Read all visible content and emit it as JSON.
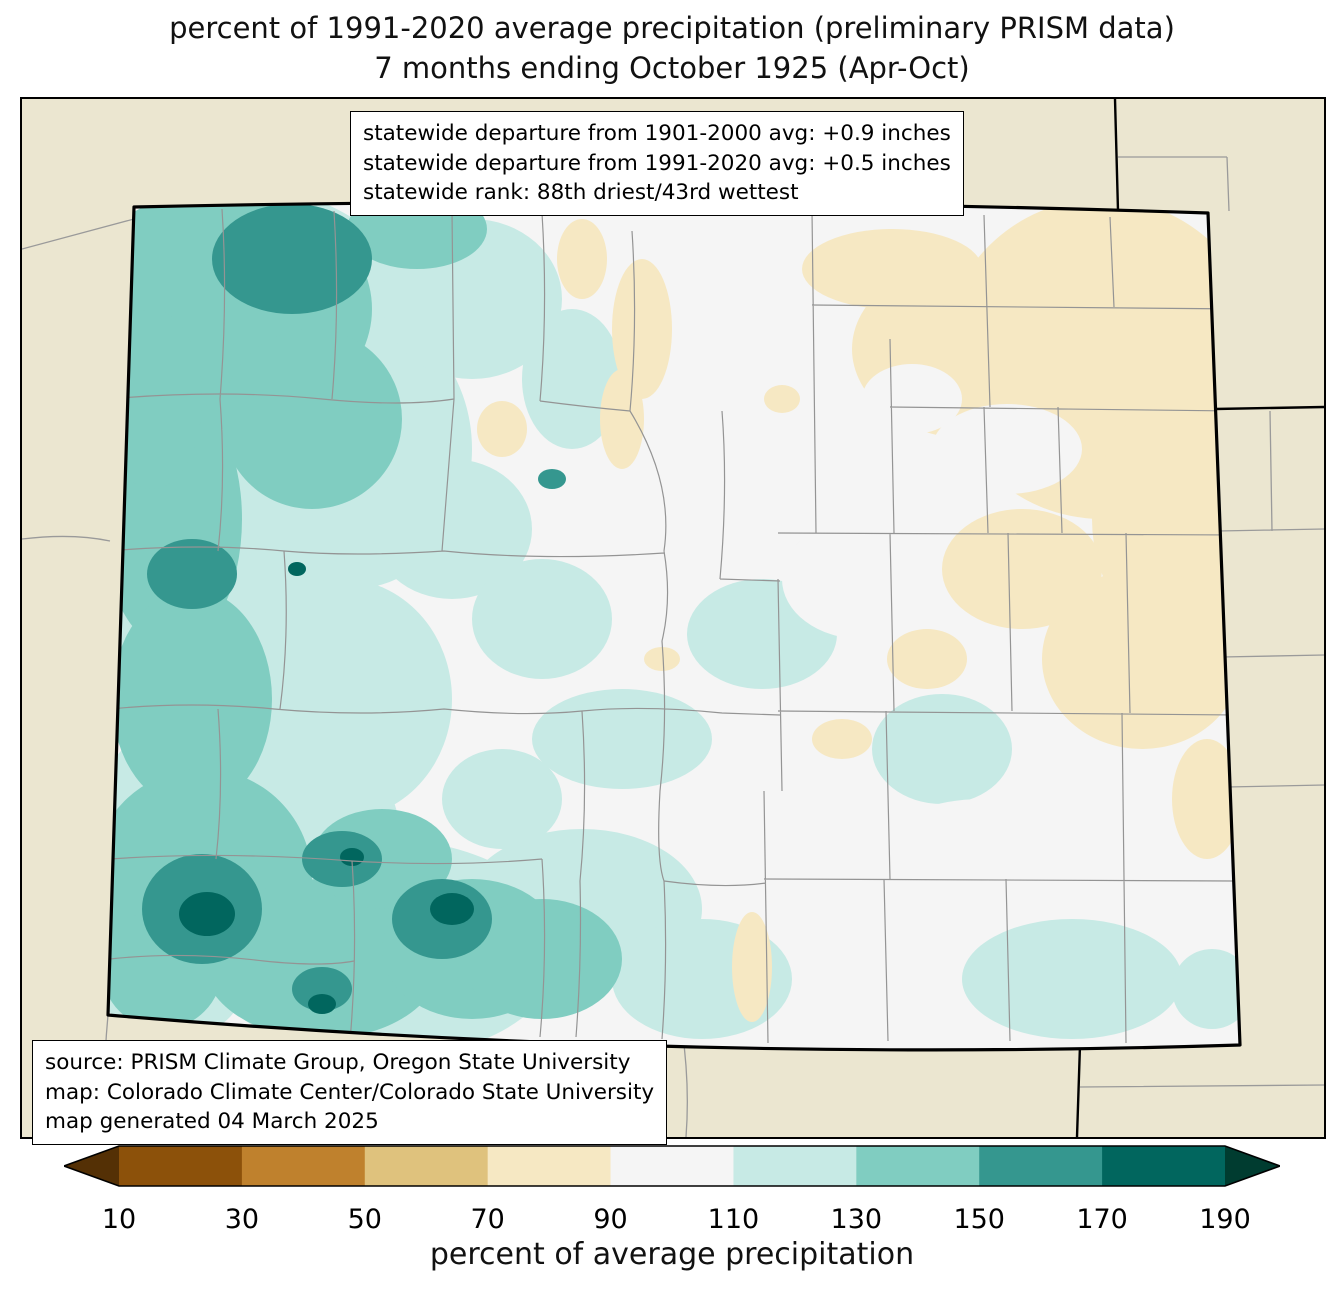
{
  "title": {
    "line1": "percent of 1991-2020 average precipitation (preliminary PRISM data)",
    "line2": "7 months ending October 1925 (Apr-Oct)"
  },
  "stats_box": {
    "lines": [
      "statewide departure from 1901-2000 avg: +0.9 inches",
      "statewide departure from 1991-2020 avg: +0.5 inches",
      "statewide rank: 88th driest/43rd wettest"
    ]
  },
  "credits_box": {
    "lines": [
      "source: PRISM Climate Group, Oregon State University",
      "map: Colorado Climate Center/Colorado State University",
      "map generated 04 March 2025"
    ]
  },
  "map": {
    "region": "Colorado",
    "background_color": "#ebe6d0",
    "county_line_color": "#949494",
    "state_border_color": "#000000",
    "value_colors": {
      "under_10": "#543005",
      "10_30": "#8c510a",
      "30_50": "#bf812d",
      "50_70": "#dfc27d",
      "70_90": "#f6e8c3",
      "90_110": "#f5f5f5",
      "110_130": "#c7eae5",
      "130_150": "#80cdc1",
      "150_170": "#35978f",
      "170_190": "#01665e",
      "over_190": "#003c30"
    }
  },
  "colorbar": {
    "label": "percent of average precipitation",
    "ticks": [
      10,
      30,
      50,
      70,
      90,
      110,
      130,
      150,
      170,
      190
    ],
    "segment_colors": [
      "#8c510a",
      "#bf812d",
      "#dfc27d",
      "#f6e8c3",
      "#f5f5f5",
      "#c7eae5",
      "#80cdc1",
      "#35978f",
      "#01665e"
    ],
    "arrow_left_color": "#543005",
    "arrow_right_color": "#003c30"
  }
}
